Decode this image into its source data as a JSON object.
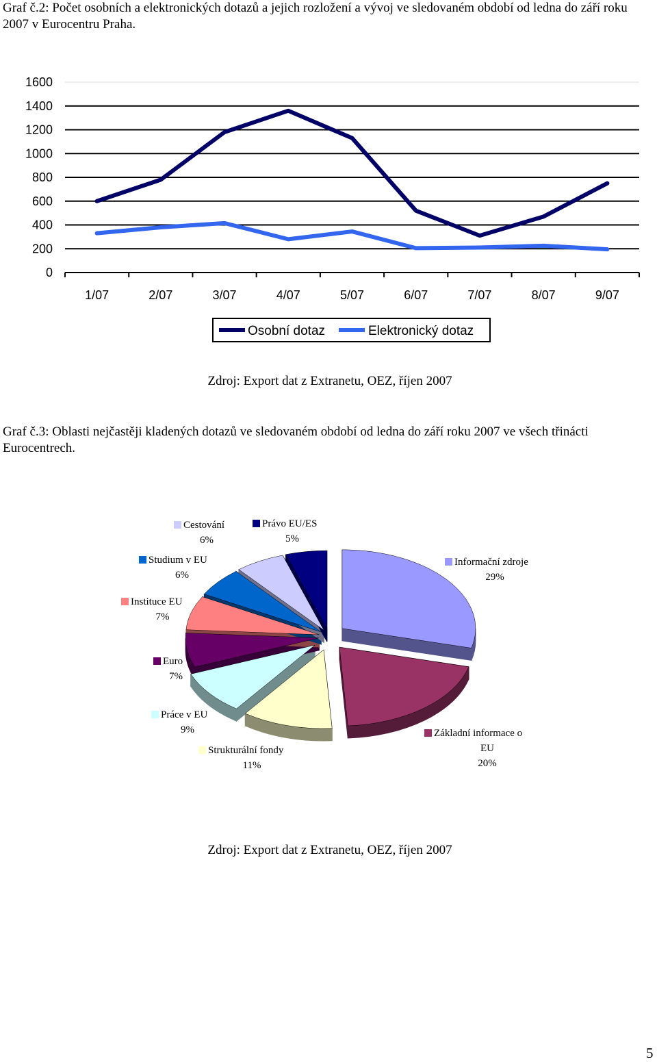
{
  "captions": {
    "graph2": "Graf č.2: Počet osobních a elektronických dotazů a jejich rozložení a vývoj ve sledovaném období od ledna do září roku 2007 v Eurocentru Praha.",
    "graph3": "Graf č.3: Oblasti nejčastěji kladených dotazů ve sledovaném období od ledna do září roku 2007 ve všech třinácti Eurocentrech."
  },
  "sources": {
    "graph2": "Zdroj: Export dat z Extranetu, OEZ, říjen 2007",
    "graph3": "Zdroj: Export dat z Extranetu, OEZ, říjen 2007"
  },
  "page_number": "5",
  "chart_data": [
    {
      "type": "line",
      "title": "",
      "xlabel": "",
      "ylabel": "",
      "categories": [
        "1/07",
        "2/07",
        "3/07",
        "4/07",
        "5/07",
        "6/07",
        "7/07",
        "8/07",
        "9/07"
      ],
      "ylim": [
        0,
        1600
      ],
      "yticks": [
        0,
        200,
        400,
        600,
        800,
        1000,
        1200,
        1400,
        1600
      ],
      "grid": true,
      "legend_position": "bottom",
      "series": [
        {
          "name": "Osobní dotaz",
          "color": "#000066",
          "values": [
            600,
            780,
            1180,
            1360,
            1130,
            520,
            310,
            470,
            750
          ]
        },
        {
          "name": "Elektronický dotaz",
          "color": "#3366ee",
          "values": [
            330,
            380,
            415,
            280,
            345,
            205,
            210,
            225,
            195
          ]
        }
      ]
    },
    {
      "type": "pie",
      "title": "",
      "slices": [
        {
          "name": "Informační zdroje",
          "percent_label": "29%",
          "value": 29,
          "color": "#9999ff"
        },
        {
          "name": "Základní informace o EU",
          "percent_label": "20%",
          "value": 20,
          "color": "#993366"
        },
        {
          "name": "Strukturální fondy",
          "percent_label": "11%",
          "value": 11,
          "color": "#ffffcc"
        },
        {
          "name": "Práce v EU",
          "percent_label": "9%",
          "value": 9,
          "color": "#ccffff"
        },
        {
          "name": "Euro",
          "percent_label": "7%",
          "value": 7,
          "color": "#660066"
        },
        {
          "name": "Instituce EU",
          "percent_label": "7%",
          "value": 7,
          "color": "#ff8080"
        },
        {
          "name": "Studium v EU",
          "percent_label": "6%",
          "value": 6,
          "color": "#0066cc"
        },
        {
          "name": "Cestování",
          "percent_label": "6%",
          "value": 6,
          "color": "#ccccff"
        },
        {
          "name": "Právo EU/ES",
          "percent_label": "5%",
          "value": 5,
          "color": "#000080"
        }
      ]
    }
  ]
}
